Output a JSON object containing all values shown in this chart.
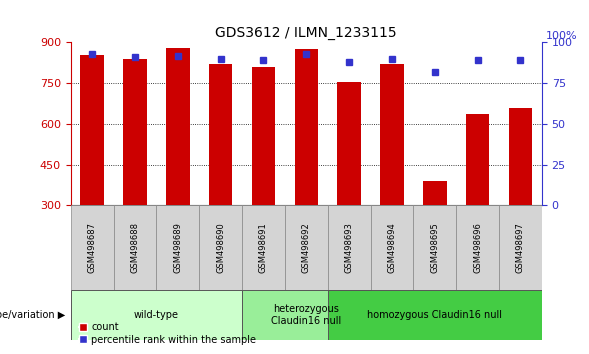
{
  "title": "GDS3612 / ILMN_1233115",
  "samples": [
    "GSM498687",
    "GSM498688",
    "GSM498689",
    "GSM498690",
    "GSM498691",
    "GSM498692",
    "GSM498693",
    "GSM498694",
    "GSM498695",
    "GSM498696",
    "GSM498697"
  ],
  "counts": [
    855,
    840,
    880,
    820,
    810,
    875,
    755,
    820,
    390,
    635,
    660
  ],
  "percentile_ranks": [
    93,
    91,
    92,
    90,
    89,
    93,
    88,
    90,
    82,
    89,
    89
  ],
  "ylim_left": [
    300,
    900
  ],
  "ylim_right": [
    0,
    100
  ],
  "yticks_left": [
    300,
    450,
    600,
    750,
    900
  ],
  "yticks_right": [
    0,
    25,
    50,
    75,
    100
  ],
  "bar_color": "#cc0000",
  "dot_color": "#3333cc",
  "bar_width": 0.55,
  "bg_color": "#ffffff",
  "label_count": "count",
  "label_percentile": "percentile rank within the sample",
  "ylabel_left_color": "#cc0000",
  "ylabel_right_color": "#3333cc",
  "genotype_label": "genotype/variation",
  "group_defs": [
    {
      "start": 0,
      "end": 3,
      "label": "wild-type",
      "color": "#ccffcc"
    },
    {
      "start": 4,
      "end": 6,
      "label": "heterozygous\nClaudin16 null",
      "color": "#99ee99"
    },
    {
      "start": 6,
      "end": 10,
      "label": "homozygous Claudin16 null",
      "color": "#44cc44"
    }
  ],
  "sample_box_color": "#d4d4d4",
  "sample_box_edge": "#888888"
}
